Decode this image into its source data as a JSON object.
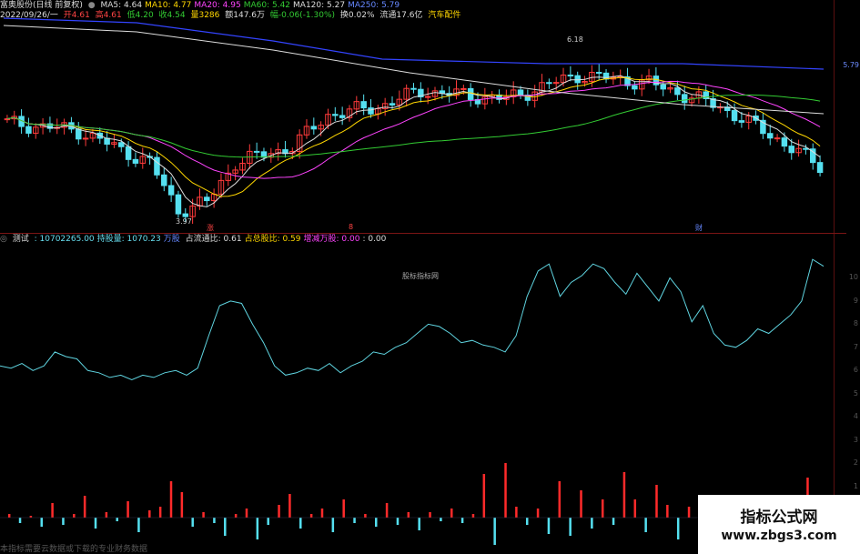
{
  "header": {
    "stock": "富奥股份(日线 前复权)",
    "ma_items": [
      {
        "label": "MA5:",
        "value": "4.64",
        "color": "#dddddd"
      },
      {
        "label": "MA10:",
        "value": "4.77",
        "color": "#ffd700"
      },
      {
        "label": "MA20:",
        "value": "4.95",
        "color": "#ff44ff"
      },
      {
        "label": "MA60:",
        "value": "5.42",
        "color": "#33cc33"
      },
      {
        "label": "MA120:",
        "value": "5.27",
        "color": "#dddddd"
      },
      {
        "label": "MA250:",
        "value": "5.79",
        "color": "#6688ff"
      }
    ],
    "date": "2022/09/26/一",
    "open": "开4.61",
    "high": "高4.61",
    "low": "低4.20",
    "close": "收4.54",
    "volume": "量3286",
    "amount": "额147.6万",
    "change": "幅-0.06(-1.30%)",
    "turnover": "换0.02%",
    "float": "流通17.6亿",
    "industry": "汽车配件"
  },
  "price_chart": {
    "high_label": "6.18",
    "low_label": "3.97",
    "right_price": "5.79",
    "markers": [
      "涨",
      "8",
      "财"
    ]
  },
  "indicator": {
    "name": "测试",
    "values": [
      {
        "label": ":",
        "value": "10702265.00",
        "color": "#66ddee"
      },
      {
        "label": "持股量:",
        "value": "1070.23",
        "color": "#66ddee"
      },
      {
        "label": "万股",
        "value": "",
        "color": "#6688ff"
      },
      {
        "label": "占流通比:",
        "value": "0.61",
        "color": "#dddddd"
      },
      {
        "label": "占总股比:",
        "value": "0.59",
        "color": "#ffd700"
      },
      {
        "label": "增减万股:",
        "value": "0.00",
        "color": "#ff44ff"
      },
      {
        "label": ":",
        "value": "0.00",
        "color": "#dddddd"
      }
    ],
    "watermark": "股标指标网",
    "y_labels": [
      "10",
      "9",
      "8",
      "7",
      "6",
      "5",
      "4",
      "3",
      "2",
      "1"
    ]
  },
  "chart_data": {
    "type": "line",
    "title": "",
    "series": [
      {
        "values": [
          6.2,
          6.1,
          6.3,
          6.0,
          6.2,
          6.8,
          6.6,
          6.5,
          6.0,
          5.9,
          5.7,
          5.8,
          5.6,
          5.8,
          5.7,
          5.9,
          6.0,
          5.8,
          6.1,
          7.5,
          8.8,
          9.0,
          8.9,
          8.0,
          7.2,
          6.2,
          5.8,
          5.9,
          6.1,
          6.0,
          6.3,
          5.9,
          6.2,
          6.4,
          6.8,
          6.7,
          7.0,
          7.2,
          7.6,
          8.0,
          7.9,
          7.6,
          7.2,
          7.3,
          7.1,
          7.0,
          6.8,
          7.5,
          9.2,
          10.3,
          10.6,
          9.2,
          9.8,
          10.1,
          10.6,
          10.4,
          9.8,
          9.3,
          10.2,
          9.6,
          9.0,
          10.0,
          9.4,
          8.1,
          8.8,
          7.6,
          7.1,
          7.0,
          7.3,
          7.8,
          7.6,
          8.0,
          8.4,
          9.0,
          10.8,
          10.5
        ]
      }
    ],
    "bars": [
      0.2,
      -0.3,
      0.1,
      -0.5,
      0.8,
      -0.4,
      0.2,
      1.2,
      -0.6,
      0.3,
      -0.2,
      0.9,
      -0.8,
      0.4,
      0.6,
      2.0,
      1.4,
      -0.5,
      0.3,
      -0.3,
      -1.0,
      0.2,
      0.5,
      -1.2,
      -0.4,
      0.7,
      1.3,
      -0.6,
      0.2,
      0.5,
      -0.8,
      1.0,
      -0.3,
      0.2,
      -0.5,
      0.8,
      -0.4,
      0.3,
      -0.7,
      0.3,
      -0.2,
      0.5,
      -0.3,
      0.2,
      2.4,
      -1.5,
      3.0,
      0.6,
      -0.4,
      0.5,
      -0.9,
      2.0,
      -1.0,
      1.5,
      -0.6,
      1.0,
      -0.4,
      2.5,
      1.0,
      -0.8,
      1.8,
      0.7,
      -1.2,
      0.6,
      -1.4,
      -0.8,
      0.3,
      -0.4,
      0.5,
      -0.6,
      0.4,
      0.9,
      -0.5,
      -0.7,
      2.2,
      0.8
    ],
    "y_ticks": [
      1,
      2,
      3,
      4,
      5,
      6,
      7,
      8,
      9,
      10
    ]
  },
  "footer": "本指标需要云数据或下载的专业财务数据",
  "logo": {
    "line1": "指标公式网",
    "line2": "www.zbgs3.com"
  }
}
